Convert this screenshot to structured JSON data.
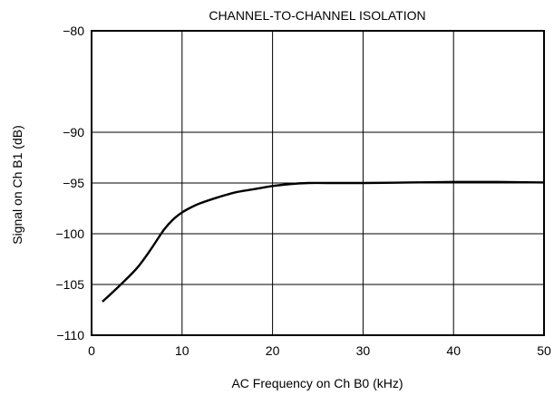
{
  "chart_data": {
    "type": "line",
    "title": "CHANNEL-TO-CHANNEL ISOLATION",
    "xlabel": "AC Frequency on Ch B0 (kHz)",
    "ylabel": "Signal on Ch B1 (dB)",
    "xlim": [
      0,
      50
    ],
    "ylim": [
      -110,
      -80
    ],
    "x_ticks": [
      0,
      10,
      20,
      30,
      40,
      50
    ],
    "y_ticks": [
      -80,
      -90,
      -95,
      -100,
      -105,
      -110
    ],
    "x_tick_labels": [
      "0",
      "10",
      "20",
      "30",
      "40",
      "50"
    ],
    "y_tick_labels": [
      "−80",
      "−90",
      "−95",
      "−100",
      "−105",
      "−110"
    ],
    "grid": true,
    "series": [
      {
        "color": "#000000",
        "x": [
          1.2,
          3,
          5,
          6.5,
          8,
          9,
          10,
          11,
          12,
          14,
          16,
          18,
          20,
          22,
          24,
          26,
          30,
          35,
          40,
          45,
          50
        ],
        "y": [
          -106.7,
          -105.2,
          -103.4,
          -101.6,
          -99.6,
          -98.6,
          -97.9,
          -97.4,
          -97.0,
          -96.4,
          -95.9,
          -95.6,
          -95.3,
          -95.1,
          -95.0,
          -95.0,
          -95.0,
          -94.95,
          -94.9,
          -94.9,
          -94.95
        ]
      }
    ]
  }
}
